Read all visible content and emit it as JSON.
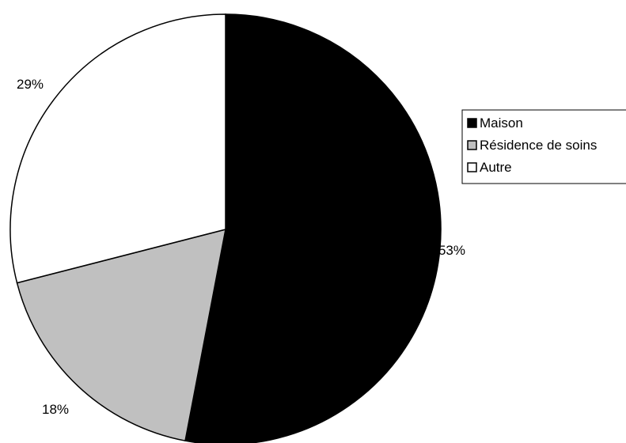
{
  "chart_data": {
    "type": "pie",
    "categories": [
      "Maison",
      "Résidence de soins",
      "Autre"
    ],
    "values": [
      53,
      18,
      29
    ],
    "labels": [
      "53%",
      "18%",
      "29%"
    ],
    "colors": [
      "#000000",
      "#c0c0c0",
      "#ffffff"
    ],
    "start_angle_deg": 0,
    "direction": "clockwise",
    "legend": {
      "position": "right",
      "entries": [
        "Maison",
        "Résidence de soins",
        "Autre"
      ]
    },
    "title": ""
  }
}
